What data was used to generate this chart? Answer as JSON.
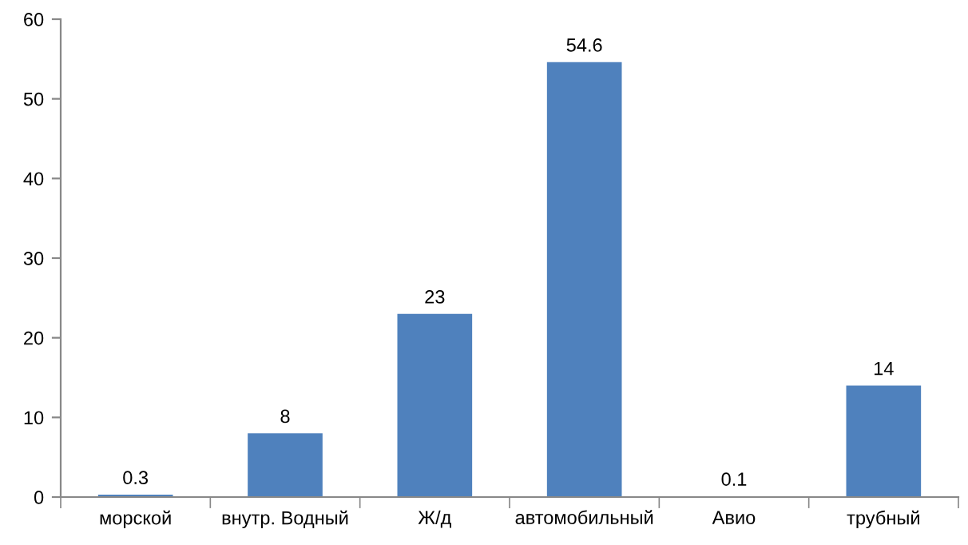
{
  "chart_data": {
    "type": "bar",
    "categories": [
      "морской",
      "внутр. Водный",
      "Ж/д",
      "автомобильный",
      "Авио",
      "трубный"
    ],
    "values": [
      0.3,
      8,
      23,
      54.6,
      0.1,
      14
    ],
    "color": "#4f81bd",
    "ylim": [
      0,
      60
    ],
    "yticks": [
      0,
      10,
      20,
      30,
      40,
      50,
      60
    ],
    "grid": false,
    "legend": false,
    "data_labels": true
  }
}
